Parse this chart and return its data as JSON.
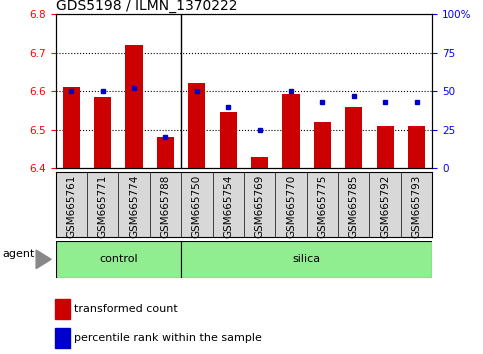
{
  "title": "GDS5198 / ILMN_1370222",
  "samples": [
    "GSM665761",
    "GSM665771",
    "GSM665774",
    "GSM665788",
    "GSM665750",
    "GSM665754",
    "GSM665769",
    "GSM665770",
    "GSM665775",
    "GSM665785",
    "GSM665792",
    "GSM665793"
  ],
  "red_values": [
    6.61,
    6.585,
    6.72,
    6.48,
    6.62,
    6.545,
    6.43,
    6.592,
    6.52,
    6.56,
    6.51,
    6.51
  ],
  "blue_pct": [
    50,
    50,
    52,
    20,
    50,
    40,
    25,
    50,
    43,
    47,
    43,
    43
  ],
  "control_samples": 4,
  "ylim_left": [
    6.4,
    6.8
  ],
  "ylim_right": [
    0,
    100
  ],
  "yticks_left": [
    6.4,
    6.5,
    6.6,
    6.7,
    6.8
  ],
  "yticks_right": [
    0,
    25,
    50,
    75,
    100
  ],
  "ytick_labels_right": [
    "0",
    "25",
    "50",
    "75",
    "100%"
  ],
  "bar_color": "#cc0000",
  "dot_color": "#0000cc",
  "bar_width": 0.55,
  "green_color": "#90ee90",
  "label_bg_color": "#d8d8d8",
  "agent_label": "agent",
  "control_label": "control",
  "silica_label": "silica",
  "legend_tc": "transformed count",
  "legend_pr": "percentile rank within the sample",
  "title_fontsize": 10,
  "tick_fontsize": 7.5,
  "label_fontsize": 8
}
